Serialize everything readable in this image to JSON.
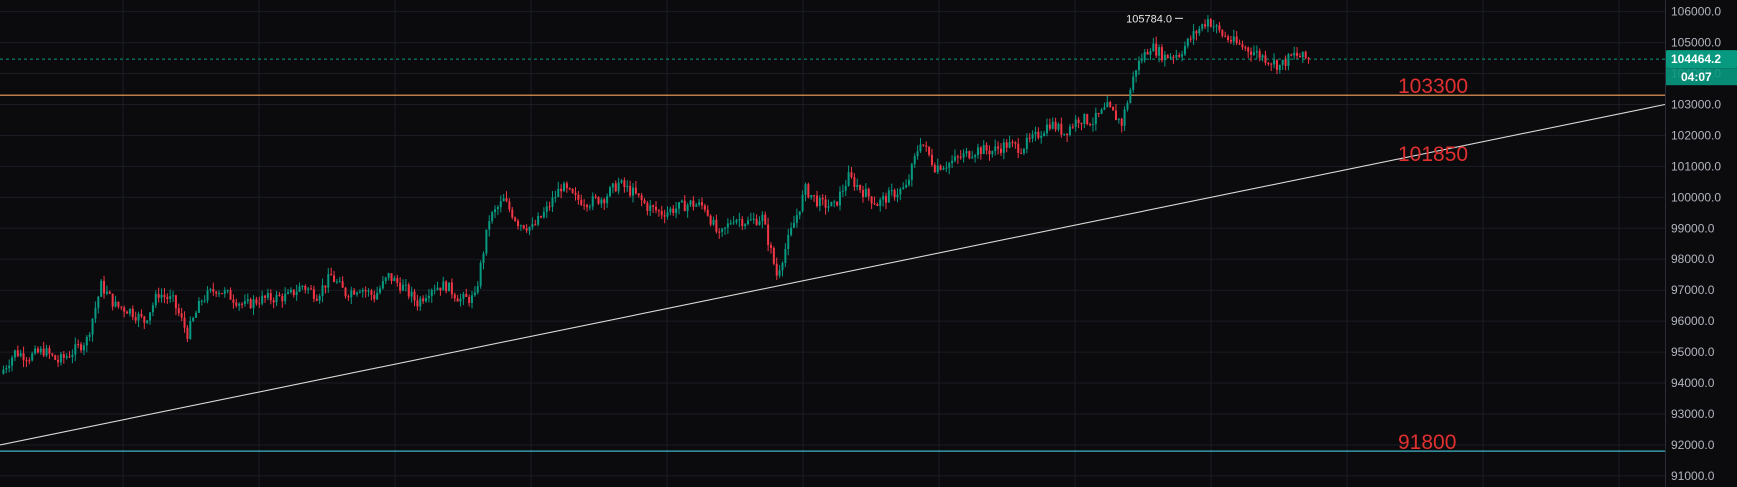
{
  "chart_data": {
    "type": "candlestick",
    "symbol": "",
    "y_axis": {
      "position": "right",
      "ylim": [
        90900,
        106150
      ],
      "ticks": [
        91000,
        92000,
        93000,
        94000,
        95000,
        96000,
        97000,
        98000,
        99000,
        100000,
        101000,
        102000,
        103000,
        104000,
        105000,
        106000
      ],
      "tick_labels": [
        "91000.0",
        "92000.0",
        "93000.0",
        "94000.0",
        "95000.0",
        "96000.0",
        "97000.0",
        "98000.0",
        "99000.0",
        "100000.0",
        "101000.0",
        "102000.0",
        "103000.0",
        "104000.0",
        "105000.0",
        "106000.0"
      ]
    },
    "grid": true,
    "current_price": {
      "value": 104464.2,
      "label": "104464.2",
      "countdown": "04:07",
      "color": "#089981"
    },
    "peak_marker": {
      "value": 105784.0,
      "label": "105784.0"
    },
    "horizontal_levels": [
      {
        "value": 103300,
        "label": "103300",
        "line_color": "#f7a35c",
        "label_color": "#e03030"
      },
      {
        "value": 91800,
        "label": "91800",
        "line_color": "#3fb5c7",
        "label_color": "#e03030"
      }
    ],
    "trendline": {
      "label": "101850",
      "label_color": "#e03030",
      "line_color": "#d9d9d9",
      "start_value": 92000,
      "end_value": 103000
    },
    "colors": {
      "up": "#089981",
      "down": "#f23645",
      "background": "#0b0b0e",
      "grid": "#1b1d24"
    },
    "price_path": [
      94300,
      95000,
      94850,
      95050,
      94700,
      95000,
      95400,
      97150,
      96500,
      96350,
      96000,
      96900,
      96650,
      95600,
      96700,
      97050,
      96800,
      96500,
      96700,
      96750,
      96800,
      97150,
      96850,
      97450,
      96900,
      97100,
      96800,
      97450,
      97100,
      96600,
      97100,
      97150,
      96700,
      96750,
      99300,
      99900,
      99200,
      99000,
      99600,
      100350,
      99950,
      99850,
      100000,
      100450,
      100150,
      99700,
      99500,
      99650,
      99800,
      99700,
      98700,
      99350,
      99200,
      99350,
      97500,
      98900,
      100250,
      99800,
      99700,
      100650,
      100200,
      99800,
      100100,
      100300,
      101850,
      101000,
      101100,
      101350,
      101550,
      101500,
      101700,
      101600,
      101950,
      102400,
      102100,
      102550,
      102450,
      102900,
      102400,
      104200,
      104900,
      104550,
      104650,
      105250,
      105750,
      105250,
      104950,
      104750,
      104500,
      104250,
      104600,
      104464
    ]
  }
}
